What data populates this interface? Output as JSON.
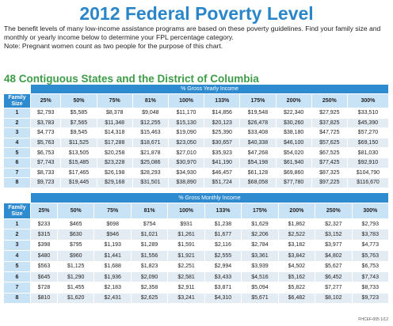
{
  "header": {
    "title": "2012 Federal Poverty Level",
    "intro": "The benefit levels of many low-income assistance programs are based on these poverty guidelines. Find your family size and monthly or yearly income below to determine your FPL percentage category.",
    "note": "Note: Pregnant women count as two people for the purpose of this chart."
  },
  "section_title": "48 Contiguous States and the District of Columbia",
  "tables": [
    {
      "caption": "% Gross Yearly Income",
      "columns": [
        "Family Size",
        "25%",
        "50%",
        "75%",
        "81%",
        "100%",
        "133%",
        "175%",
        "200%",
        "250%",
        "300%"
      ],
      "rows": [
        [
          "1",
          "$2,793",
          "$5,585",
          "$8,378",
          "$9,048",
          "$11,170",
          "$14,856",
          "$19,548",
          "$22,340",
          "$27,925",
          "$33,510"
        ],
        [
          "2",
          "$3,783",
          "$7,565",
          "$11,348",
          "$12,255",
          "$15,130",
          "$20,123",
          "$26,478",
          "$30,260",
          "$37,825",
          "$45,390"
        ],
        [
          "3",
          "$4,773",
          "$9,545",
          "$14,318",
          "$15,463",
          "$19,090",
          "$25,390",
          "$33,408",
          "$38,180",
          "$47,725",
          "$57,270"
        ],
        [
          "4",
          "$5,763",
          "$11,525",
          "$17,288",
          "$18,671",
          "$23,050",
          "$30,657",
          "$40,338",
          "$46,100",
          "$57,625",
          "$69,150"
        ],
        [
          "5",
          "$6,753",
          "$13,505",
          "$20,258",
          "$21,878",
          "$27,010",
          "$35,923",
          "$47,268",
          "$54,020",
          "$67,525",
          "$81,030"
        ],
        [
          "6",
          "$7,743",
          "$15,485",
          "$23,228",
          "$25,086",
          "$30,970",
          "$41,190",
          "$54,198",
          "$61,940",
          "$77,425",
          "$92,910"
        ],
        [
          "7",
          "$8,733",
          "$17,465",
          "$26,198",
          "$28,293",
          "$34,930",
          "$46,457",
          "$61,128",
          "$69,860",
          "$87,325",
          "$104,790"
        ],
        [
          "8",
          "$9,723",
          "$19,445",
          "$29,168",
          "$31,501",
          "$38,890",
          "$51,724",
          "$68,058",
          "$77,780",
          "$97,225",
          "$116,670"
        ]
      ]
    },
    {
      "caption": "% Gross Monthly Income",
      "columns": [
        "Family Size",
        "25%",
        "50%",
        "75%",
        "81%",
        "100%",
        "133%",
        "175%",
        "200%",
        "250%",
        "300%"
      ],
      "rows": [
        [
          "1",
          "$233",
          "$465",
          "$698",
          "$754",
          "$931",
          "$1,238",
          "$1,629",
          "$1,862",
          "$2,327",
          "$2,793"
        ],
        [
          "2",
          "$315",
          "$630",
          "$946",
          "$1,021",
          "$1,261",
          "$1,677",
          "$2,206",
          "$2,522",
          "$3,152",
          "$3,783"
        ],
        [
          "3",
          "$398",
          "$795",
          "$1,193",
          "$1,289",
          "$1,591",
          "$2,116",
          "$2,784",
          "$3,182",
          "$3,977",
          "$4,773"
        ],
        [
          "4",
          "$480",
          "$960",
          "$1,441",
          "$1,556",
          "$1,921",
          "$2,555",
          "$3,361",
          "$3,842",
          "$4,802",
          "$5,763"
        ],
        [
          "5",
          "$563",
          "$1,125",
          "$1,688",
          "$1,823",
          "$2,251",
          "$2,994",
          "$3,939",
          "$4,502",
          "$5,627",
          "$6,753"
        ],
        [
          "6",
          "$645",
          "$1,290",
          "$1,936",
          "$2,090",
          "$2,581",
          "$3,433",
          "$4,516",
          "$5,162",
          "$6,452",
          "$7,743"
        ],
        [
          "7",
          "$728",
          "$1,455",
          "$2,183",
          "$2,358",
          "$2,911",
          "$3,871",
          "$5,094",
          "$5,822",
          "$7,277",
          "$8,733"
        ],
        [
          "8",
          "$810",
          "$1,620",
          "$2,431",
          "$2,625",
          "$3,241",
          "$4,310",
          "$5,671",
          "$6,482",
          "$8,102",
          "$9,723"
        ]
      ]
    }
  ],
  "footer": "FHCEF-005 1/12"
}
